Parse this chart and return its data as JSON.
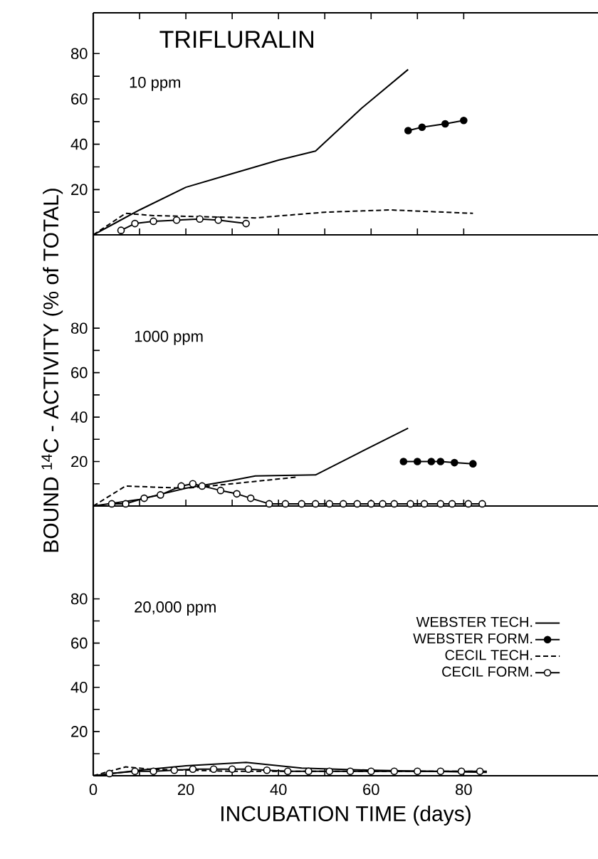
{
  "chart_data": [
    {
      "type": "line",
      "title": "TRIFLURALIN",
      "subtitle": "10 ppm",
      "xlim": [
        0,
        109
      ],
      "ylim": [
        0,
        98
      ],
      "xticks": [
        0,
        {
          "value": 10,
          "label": null
        },
        20,
        {
          "value": 30,
          "label": null
        },
        40,
        {
          "value": 50,
          "label": null
        },
        60,
        {
          "value": 70,
          "label": null
        },
        80
      ],
      "yticks": [
        {
          "value": 10,
          "label": null
        },
        20,
        {
          "value": 30,
          "label": null
        },
        40,
        {
          "value": 50,
          "label": null
        },
        60,
        {
          "value": 70,
          "label": null
        },
        80
      ],
      "tick_labels": "y",
      "legend": false,
      "series": [
        {
          "color": "#000000",
          "line_style": "solid",
          "marker": "none",
          "x": [
            0,
            5,
            10,
            20,
            30,
            40,
            48,
            58,
            68
          ],
          "values": [
            0,
            5.5,
            11,
            21,
            27,
            33,
            37,
            56,
            73
          ]
        },
        {
          "color": "#000000",
          "line_style": "solid",
          "marker": "circle",
          "x": [
            68,
            71,
            76,
            80
          ],
          "values": [
            46,
            47.5,
            49,
            50.5
          ]
        },
        {
          "color": "#000000",
          "line_style": "dashed",
          "marker": "none",
          "x": [
            0,
            7,
            13,
            35,
            50,
            64,
            82
          ],
          "values": [
            0,
            9.5,
            8.5,
            7.5,
            10,
            11,
            9.5
          ]
        },
        {
          "color": "#ffffff",
          "line_style": "solid",
          "marker": "circle",
          "x": [
            6,
            9,
            13,
            18,
            23,
            27,
            33
          ],
          "values": [
            2,
            5,
            6,
            6.5,
            7,
            6.5,
            5
          ]
        }
      ]
    },
    {
      "type": "line",
      "subtitle": "1000 ppm",
      "ylabel": "BOUND $^{14}$C - ACTIVITY (% of TOTAL)",
      "xlim": [
        0,
        109
      ],
      "ylim": [
        0,
        122
      ],
      "xticks": [
        0,
        {
          "value": 10,
          "label": null
        },
        20,
        {
          "value": 30,
          "label": null
        },
        40,
        {
          "value": 50,
          "label": null
        },
        60,
        {
          "value": 70,
          "label": null
        },
        80
      ],
      "yticks": [
        {
          "value": 10,
          "label": null
        },
        20,
        {
          "value": 30,
          "label": null
        },
        40,
        {
          "value": 50,
          "label": null
        },
        60,
        {
          "value": 70,
          "label": null
        },
        80
      ],
      "tick_labels": "y",
      "legend": false,
      "series": [
        {
          "color": "#000000",
          "line_style": "solid",
          "marker": "none",
          "x": [
            0,
            10,
            20,
            30,
            35,
            48,
            57,
            68
          ],
          "values": [
            0,
            3,
            8,
            11.5,
            13.5,
            14,
            23.5,
            35
          ]
        },
        {
          "color": "#000000",
          "line_style": "solid",
          "marker": "circle",
          "x": [
            67,
            70,
            73,
            75,
            78,
            82
          ],
          "values": [
            20,
            20,
            20,
            20,
            19.5,
            19
          ]
        },
        {
          "color": "#000000",
          "line_style": "dashed",
          "marker": "none",
          "x": [
            0,
            7,
            13,
            20,
            30,
            44
          ],
          "values": [
            0,
            9,
            8.5,
            8,
            10,
            13
          ]
        },
        {
          "color": "#ffffff",
          "line_style": "solid",
          "marker": "circle",
          "x": [
            4,
            7,
            11,
            14.5,
            19,
            21.5,
            23.5,
            27.5,
            31,
            34,
            38,
            41.5,
            45,
            48,
            51,
            54,
            57,
            60,
            62.5,
            65,
            68.5,
            71.5,
            75,
            77.5,
            81,
            84
          ],
          "values": [
            1,
            1,
            3.5,
            5,
            9,
            10,
            9,
            7,
            5.5,
            3.5,
            1,
            1,
            1,
            1,
            1,
            1,
            1,
            1,
            1,
            1,
            1,
            1,
            1,
            1,
            1,
            1
          ]
        }
      ]
    },
    {
      "type": "line",
      "subtitle": "20,000 ppm",
      "xlabel": "INCUBATION TIME (days)",
      "xlim": [
        0,
        109
      ],
      "ylim": [
        0,
        122
      ],
      "xticks": [
        0,
        {
          "value": 10,
          "label": null
        },
        20,
        {
          "value": 30,
          "label": null
        },
        40,
        {
          "value": 50,
          "label": null
        },
        60,
        {
          "value": 70,
          "label": null
        },
        80
      ],
      "yticks": [
        {
          "value": 10,
          "label": null
        },
        20,
        {
          "value": 30,
          "label": null
        },
        40,
        {
          "value": 50,
          "label": null
        },
        60,
        {
          "value": 70,
          "label": null
        },
        80
      ],
      "legend": "right",
      "series": [
        {
          "name": "WEBSTER TECH.",
          "color": "#000000",
          "line_style": "solid",
          "marker": "none",
          "x": [
            0,
            10,
            20,
            33,
            45,
            60,
            85
          ],
          "values": [
            0,
            2.5,
            4.5,
            6,
            3.5,
            2.5,
            1.5
          ]
        },
        {
          "name": "WEBSTER FORM.",
          "color": "#000000",
          "line_style": "solid",
          "marker": "circle"
        },
        {
          "name": "CECIL TECH.",
          "color": "#000000",
          "line_style": "dashed",
          "marker": "none",
          "x": [
            0,
            7,
            12,
            30,
            60,
            85
          ],
          "values": [
            0,
            4,
            3,
            2,
            2,
            2
          ]
        },
        {
          "name": "CECIL FORM.",
          "color": "#ffffff",
          "line_style": "solid",
          "marker": "circle",
          "x": [
            3.5,
            9,
            13,
            17.5,
            21.5,
            26,
            30,
            33.5,
            37.5,
            42,
            46.5,
            51,
            55.5,
            60,
            65,
            70,
            75,
            79.5,
            83.5
          ],
          "values": [
            1,
            2,
            2,
            2.5,
            3,
            3,
            3,
            3,
            2.5,
            2,
            2,
            2,
            2,
            2,
            2,
            2,
            2,
            2,
            2
          ]
        }
      ]
    }
  ]
}
